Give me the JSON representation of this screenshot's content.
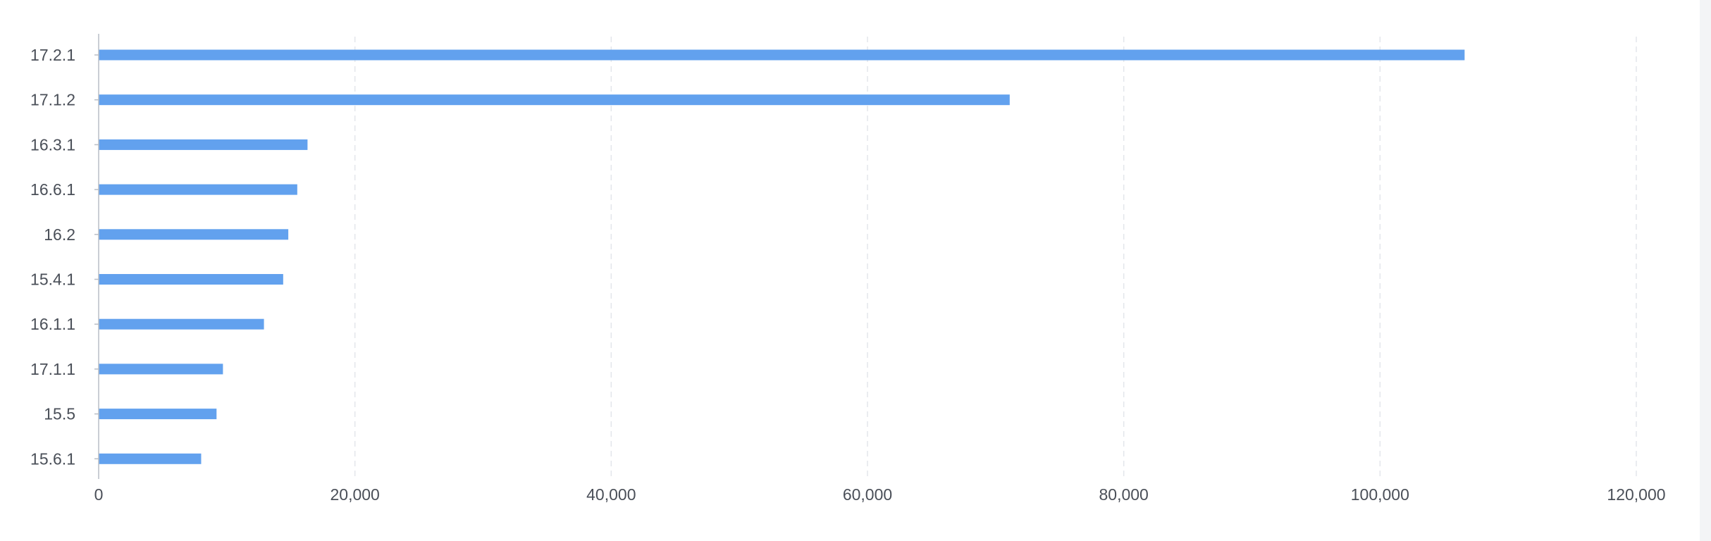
{
  "chart_data": {
    "type": "bar",
    "orientation": "horizontal",
    "categories": [
      "17.2.1",
      "17.1.2",
      "16.3.1",
      "16.6.1",
      "16.2",
      "15.4.1",
      "16.1.1",
      "17.1.1",
      "15.5",
      "15.6.1"
    ],
    "series": [
      {
        "values": [
          106600,
          71100,
          16300,
          15500,
          14800,
          14400,
          12900,
          9700,
          9200,
          8000
        ]
      }
    ],
    "xlim": [
      0,
      120000
    ],
    "xticks": [
      0,
      20000,
      40000,
      60000,
      80000,
      100000,
      120000
    ],
    "xtick_labels": [
      "0",
      "20,000",
      "40,000",
      "60,000",
      "80,000",
      "100,000",
      "120,000"
    ],
    "grid": "vertical dashed",
    "bar_color": "#62a1ee"
  }
}
